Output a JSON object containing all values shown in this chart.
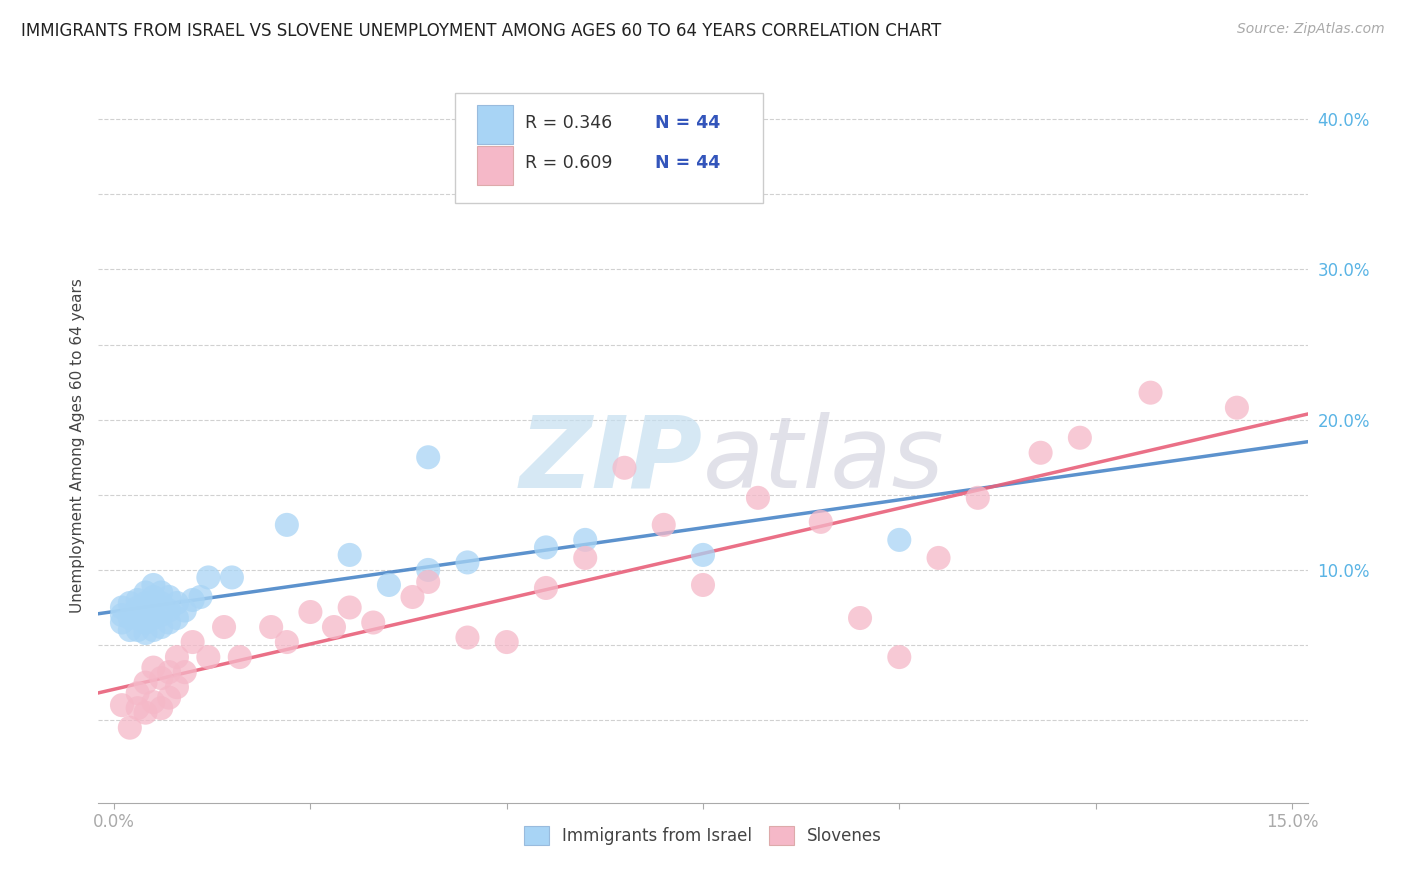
{
  "title": "IMMIGRANTS FROM ISRAEL VS SLOVENE UNEMPLOYMENT AMONG AGES 60 TO 64 YEARS CORRELATION CHART",
  "source": "Source: ZipAtlas.com",
  "ylabel": "Unemployment Among Ages 60 to 64 years",
  "xlim": [
    -0.002,
    0.152
  ],
  "ylim": [
    -0.055,
    0.42
  ],
  "blue_color": "#a8d4f5",
  "pink_color": "#f5b8c8",
  "blue_line_color": "#4a86c8",
  "pink_line_color": "#e8607a",
  "legend_label_blue": "Immigrants from Israel",
  "legend_label_pink": "Slovenes",
  "background_color": "#ffffff",
  "grid_color": "#cccccc",
  "blue_x": [
    0.001,
    0.001,
    0.001,
    0.002,
    0.002,
    0.002,
    0.003,
    0.003,
    0.003,
    0.003,
    0.004,
    0.004,
    0.004,
    0.004,
    0.004,
    0.005,
    0.005,
    0.005,
    0.005,
    0.005,
    0.006,
    0.006,
    0.006,
    0.006,
    0.007,
    0.007,
    0.007,
    0.008,
    0.008,
    0.009,
    0.01,
    0.011,
    0.012,
    0.015,
    0.022,
    0.03,
    0.035,
    0.04,
    0.04,
    0.045,
    0.055,
    0.06,
    0.075,
    0.1
  ],
  "blue_y": [
    0.065,
    0.07,
    0.075,
    0.06,
    0.068,
    0.078,
    0.06,
    0.068,
    0.075,
    0.08,
    0.058,
    0.065,
    0.072,
    0.078,
    0.085,
    0.06,
    0.068,
    0.075,
    0.082,
    0.09,
    0.062,
    0.07,
    0.078,
    0.085,
    0.065,
    0.073,
    0.082,
    0.068,
    0.078,
    0.073,
    0.08,
    0.082,
    0.095,
    0.095,
    0.13,
    0.11,
    0.09,
    0.1,
    0.175,
    0.105,
    0.115,
    0.12,
    0.11,
    0.12
  ],
  "pink_x": [
    0.001,
    0.002,
    0.003,
    0.003,
    0.004,
    0.004,
    0.005,
    0.005,
    0.006,
    0.006,
    0.007,
    0.007,
    0.008,
    0.008,
    0.009,
    0.01,
    0.012,
    0.014,
    0.016,
    0.02,
    0.022,
    0.025,
    0.028,
    0.03,
    0.033,
    0.038,
    0.04,
    0.045,
    0.05,
    0.055,
    0.06,
    0.065,
    0.07,
    0.075,
    0.082,
    0.09,
    0.095,
    0.1,
    0.105,
    0.11,
    0.118,
    0.123,
    0.132,
    0.143
  ],
  "pink_y": [
    0.01,
    -0.005,
    0.008,
    0.018,
    0.005,
    0.025,
    0.012,
    0.035,
    0.008,
    0.028,
    0.015,
    0.032,
    0.022,
    0.042,
    0.032,
    0.052,
    0.042,
    0.062,
    0.042,
    0.062,
    0.052,
    0.072,
    0.062,
    0.075,
    0.065,
    0.082,
    0.092,
    0.055,
    0.052,
    0.088,
    0.108,
    0.168,
    0.13,
    0.09,
    0.148,
    0.132,
    0.068,
    0.042,
    0.108,
    0.148,
    0.178,
    0.188,
    0.218,
    0.208
  ]
}
